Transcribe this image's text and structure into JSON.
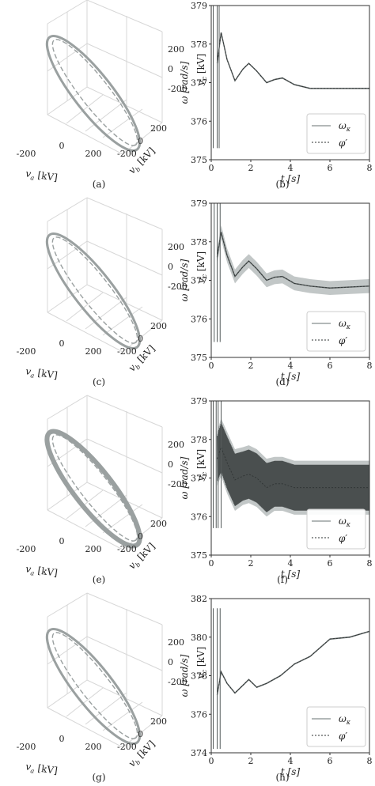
{
  "colors": {
    "trace": "#9aa0a0",
    "band": "#c2c7c7",
    "band_dark": "#4a4f4f",
    "axis": "#333333",
    "grid3d": "#d7d7d7"
  },
  "phase_panels": [
    {
      "caption": "(a)",
      "xlabel": "v_a [kV]",
      "ylabel": "v_b [kV]",
      "zlabel": "v_c [kV]",
      "x_ticks": [
        "-200",
        "0",
        "200"
      ],
      "y_ticks": [
        "200",
        "0",
        "-200"
      ],
      "z_ticks": [
        "200",
        "0",
        "-200"
      ],
      "ring_width": 3
    },
    {
      "caption": "(c)",
      "xlabel": "v_a [kV]",
      "ylabel": "v_b [kV]",
      "zlabel": "v_c [kV]",
      "x_ticks": [
        "-200",
        "0",
        "200"
      ],
      "y_ticks": [
        "200",
        "0",
        "-200"
      ],
      "z_ticks": [
        "200",
        "0",
        "-200"
      ],
      "ring_width": 3
    },
    {
      "caption": "(e)",
      "xlabel": "v_a [kV]",
      "ylabel": "v_b [kV]",
      "zlabel": "v_c [kV]",
      "x_ticks": [
        "-200",
        "0",
        "200"
      ],
      "y_ticks": [
        "200",
        "0",
        "-200"
      ],
      "z_ticks": [
        "200",
        "0",
        "-200"
      ],
      "ring_width": 6
    },
    {
      "caption": "(g)",
      "xlabel": "v_a [kV]",
      "ylabel": "v_b [kV]",
      "zlabel": "v_c [kV]",
      "x_ticks": [
        "-200",
        "0",
        "200"
      ],
      "y_ticks": [
        "200",
        "0",
        "-200"
      ],
      "z_ticks": [
        "200",
        "0",
        "-200"
      ],
      "ring_width": 3
    }
  ],
  "chart_data": [
    {
      "type": "line",
      "caption": "(b)",
      "xlabel": "t [s]",
      "ylabel": "ω [rad/s]",
      "xlim": [
        0,
        8
      ],
      "ylim": [
        375,
        379
      ],
      "xticks": [
        0,
        2,
        4,
        6,
        8
      ],
      "yticks": [
        375,
        376,
        377,
        378,
        379
      ],
      "legend": [
        "ω_κ",
        "φ′"
      ],
      "legend_position": "bottom-right",
      "band": [
        0.02,
        0.02,
        0.02,
        0.02,
        0.02,
        0.02,
        0.02,
        0.02,
        0.02,
        0.02,
        0.02,
        0.02,
        0.02,
        0.02
      ],
      "series": [
        {
          "x": [
            0.3,
            0.5,
            0.8,
            1.2,
            1.6,
            1.9,
            2.3,
            2.8,
            3.2,
            3.6,
            4.2,
            5.0,
            6.0,
            8.0
          ],
          "y": [
            377.5,
            378.3,
            377.6,
            377.05,
            377.35,
            377.5,
            377.3,
            377.0,
            377.08,
            377.12,
            376.95,
            376.85,
            376.85,
            376.85
          ]
        }
      ],
      "spikes": [
        0.1,
        0.3,
        0.4
      ],
      "spike_range": [
        375.3,
        379
      ]
    },
    {
      "type": "line",
      "caption": "(d)",
      "xlabel": "t [s]",
      "ylabel": "ω [rad/s]",
      "xlim": [
        0,
        8
      ],
      "ylim": [
        375,
        379
      ],
      "xticks": [
        0,
        2,
        4,
        6,
        8
      ],
      "yticks": [
        375,
        376,
        377,
        378,
        379
      ],
      "legend": [
        "ω_κ",
        "φ′"
      ],
      "legend_position": "bottom-right",
      "band": [
        0.18,
        0.18,
        0.18,
        0.18,
        0.18,
        0.18,
        0.18,
        0.18,
        0.18,
        0.18,
        0.18,
        0.18,
        0.18,
        0.18
      ],
      "series": [
        {
          "x": [
            0.3,
            0.5,
            0.8,
            1.2,
            1.6,
            1.9,
            2.3,
            2.8,
            3.2,
            3.6,
            4.2,
            5.0,
            6.0,
            8.0
          ],
          "y": [
            377.6,
            378.25,
            377.65,
            377.1,
            377.35,
            377.5,
            377.3,
            377.0,
            377.08,
            377.1,
            376.92,
            376.85,
            376.8,
            376.85
          ]
        }
      ],
      "spikes": [
        0.15,
        0.3,
        0.45
      ],
      "spike_range": [
        375.4,
        379
      ]
    },
    {
      "type": "line",
      "caption": "(f)",
      "xlabel": "t [s]",
      "ylabel": "ω [rad/s]",
      "xlim": [
        0,
        8
      ],
      "ylim": [
        375,
        379
      ],
      "xticks": [
        0,
        2,
        4,
        6,
        8
      ],
      "yticks": [
        375,
        376,
        377,
        378,
        379
      ],
      "legend": [
        "ω_κ",
        "φ′"
      ],
      "legend_position": "bottom-right",
      "band": [
        0.7,
        0.75,
        0.8,
        0.8,
        0.75,
        0.75,
        0.75,
        0.75,
        0.7,
        0.7,
        0.7,
        0.7,
        0.7,
        0.7
      ],
      "dense_oscillation": true,
      "series": [
        {
          "x": [
            0.3,
            0.5,
            0.8,
            1.2,
            1.6,
            1.9,
            2.3,
            2.8,
            3.2,
            3.6,
            4.2,
            5.0,
            6.0,
            8.0
          ],
          "y": [
            377.5,
            377.8,
            377.4,
            376.95,
            377.05,
            377.1,
            377.0,
            376.75,
            376.85,
            376.85,
            376.75,
            376.75,
            376.75,
            376.75
          ]
        }
      ],
      "spikes": [
        0.1,
        0.25,
        0.35,
        0.5
      ],
      "spike_range": [
        375.7,
        379
      ]
    },
    {
      "type": "line",
      "caption": "(h)",
      "xlabel": "t [s]",
      "ylabel": "ω [rad/s]",
      "xlim": [
        0,
        8
      ],
      "ylim": [
        374,
        382
      ],
      "xticks": [
        0,
        2,
        4,
        6,
        8
      ],
      "yticks": [
        374,
        376,
        378,
        380,
        382
      ],
      "legend": [
        "ω_κ",
        "φ′"
      ],
      "legend_position": "bottom-right",
      "band": [
        0.04,
        0.04,
        0.04,
        0.04,
        0.04,
        0.04,
        0.04,
        0.04,
        0.04,
        0.04,
        0.04,
        0.04,
        0.04,
        0.04
      ],
      "series": [
        {
          "x": [
            0.3,
            0.5,
            0.8,
            1.2,
            1.6,
            1.9,
            2.3,
            2.8,
            3.5,
            4.2,
            5.0,
            6.0,
            7.0,
            8.0
          ],
          "y": [
            377.0,
            378.2,
            377.6,
            377.1,
            377.5,
            377.8,
            377.4,
            377.6,
            378.0,
            378.6,
            379.0,
            379.9,
            380.0,
            380.3
          ]
        }
      ],
      "spikes": [
        0.1,
        0.3,
        0.45
      ],
      "spike_range": [
        374.2,
        381.5
      ]
    }
  ]
}
